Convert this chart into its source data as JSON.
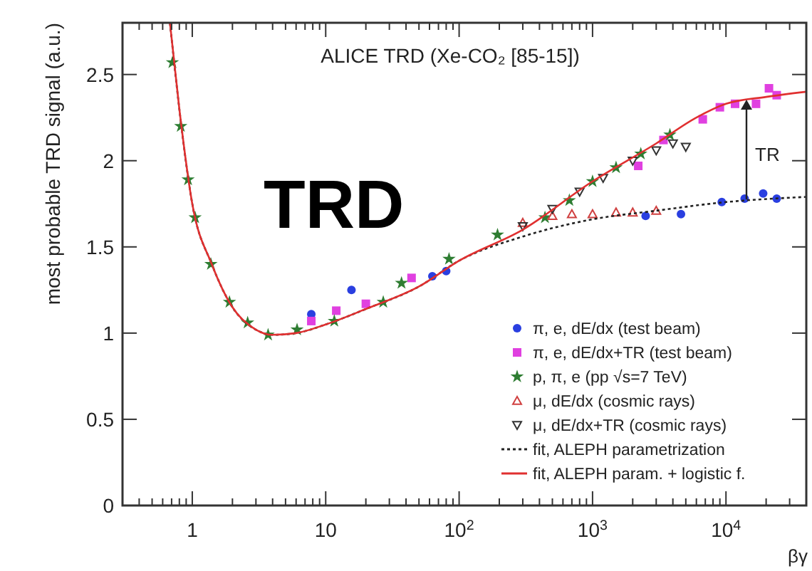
{
  "chart_data": {
    "type": "scatter",
    "title": "ALICE TRD (Xe-CO₂ [85-15])",
    "xlabel": "βγ",
    "ylabel": "most probable TRD signal (a.u.)",
    "log": "x",
    "xlim": [
      0.3,
      40000
    ],
    "ylim": [
      0,
      2.8
    ],
    "xticks": [
      1,
      10,
      {
        "value": 100,
        "label": "10$^{2}$"
      },
      {
        "value": 1000,
        "label": "10$^{3}$"
      },
      {
        "value": 10000,
        "label": "10$^{4}$"
      }
    ],
    "yticks": [
      0,
      0.5,
      1,
      1.5,
      2,
      2.5
    ],
    "grid": false,
    "legend": "bottom right",
    "annotations": [
      "TRD",
      "TR"
    ],
    "series": [
      {
        "name": "π, e, dE/dx (test beam)",
        "color": "#2a3fe0",
        "marker": "circle",
        "x": [
          7.8,
          15.6,
          63,
          80,
          2500,
          4600,
          9300,
          13800,
          19000,
          24000
        ],
        "values": [
          1.11,
          1.25,
          1.33,
          1.36,
          1.68,
          1.69,
          1.76,
          1.78,
          1.81,
          1.78
        ]
      },
      {
        "name": "π, e, dE/dx+TR (test beam)",
        "color": "#e040e0",
        "marker": "square",
        "x": [
          7.8,
          12,
          20,
          44,
          2200,
          3400,
          6700,
          9000,
          11700,
          16800,
          21000,
          24000
        ],
        "values": [
          1.07,
          1.13,
          1.17,
          1.32,
          1.97,
          2.12,
          2.24,
          2.31,
          2.33,
          2.33,
          2.42,
          2.38
        ]
      },
      {
        "name": "p, π, e (pp √s=7 TeV)",
        "color": "#2e7d32",
        "marker": "star",
        "x": [
          0.71,
          0.82,
          0.93,
          1.05,
          1.38,
          1.9,
          2.6,
          3.7,
          6.1,
          11.6,
          27,
          37,
          84,
          194,
          440,
          670,
          1000,
          1500,
          2300,
          3800
        ],
        "values": [
          2.57,
          2.2,
          1.89,
          1.67,
          1.4,
          1.18,
          1.06,
          0.99,
          1.02,
          1.07,
          1.18,
          1.29,
          1.43,
          1.57,
          1.67,
          1.77,
          1.88,
          1.96,
          2.04,
          2.15
        ]
      },
      {
        "name": "μ, dE/dx (cosmic rays)",
        "color": "#d04040",
        "marker": "triangle",
        "x": [
          300,
          500,
          700,
          1000,
          1500,
          2000,
          3000
        ],
        "values": [
          1.64,
          1.68,
          1.69,
          1.69,
          1.7,
          1.7,
          1.71
        ]
      },
      {
        "name": "μ, dE/dx+TR (cosmic rays)",
        "color": "#333333",
        "marker": "triangle-down",
        "x": [
          300,
          500,
          800,
          1200,
          2000,
          3000,
          4000,
          5000
        ],
        "values": [
          1.62,
          1.72,
          1.82,
          1.9,
          2.0,
          2.06,
          2.1,
          2.08
        ]
      },
      {
        "name": "fit, ALEPH parametrization",
        "type": "line",
        "color": "#222222",
        "marker": "none",
        "line_style": "dotted",
        "x": [
          0.68,
          0.8,
          1,
          1.4,
          2,
          3,
          4,
          6,
          10,
          20,
          50,
          100,
          300,
          1000,
          3000,
          10000,
          40000
        ],
        "values": [
          2.8,
          2.3,
          1.75,
          1.4,
          1.15,
          1.02,
          0.99,
          1.0,
          1.05,
          1.14,
          1.27,
          1.42,
          1.56,
          1.66,
          1.71,
          1.76,
          1.79
        ]
      },
      {
        "name": "fit, ALEPH param. + logistic f.",
        "type": "line",
        "color": "#e03030",
        "marker": "none",
        "line_style": "solid",
        "x": [
          0.68,
          0.8,
          1,
          1.4,
          2,
          3,
          4,
          6,
          10,
          20,
          50,
          100,
          300,
          1000,
          3000,
          6000,
          10000,
          20000,
          40000
        ],
        "values": [
          2.8,
          2.3,
          1.75,
          1.4,
          1.15,
          1.02,
          0.99,
          1.0,
          1.05,
          1.14,
          1.27,
          1.42,
          1.6,
          1.88,
          2.1,
          2.25,
          2.33,
          2.37,
          2.4
        ]
      }
    ]
  }
}
